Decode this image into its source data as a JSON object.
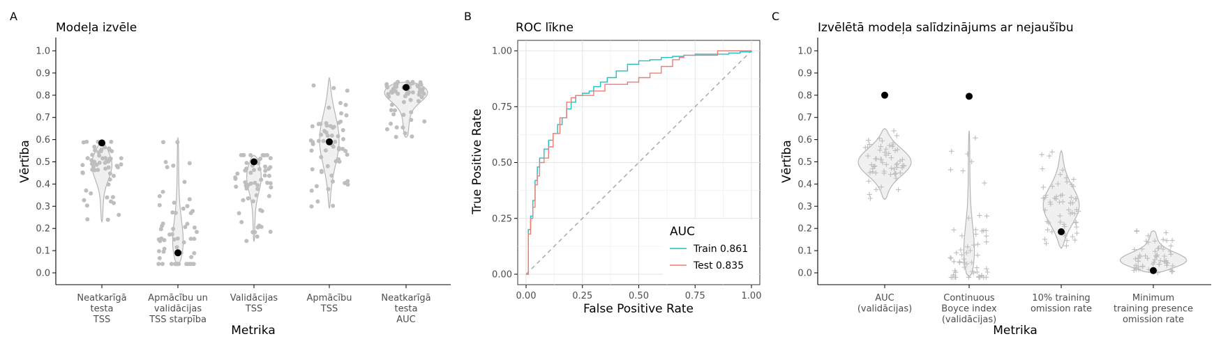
{
  "chart_data": [
    {
      "type": "violin",
      "panel": "A",
      "title": "Modeļa izvēle",
      "xlabel": "Metrika",
      "ylabel": "Vērtība",
      "ylim": [
        0,
        1
      ],
      "yticks": [
        "0.0",
        "0.1",
        "0.2",
        "0.3",
        "0.4",
        "0.5",
        "0.6",
        "0.7",
        "0.8",
        "0.9",
        "1.0"
      ],
      "categories": [
        "Neatkarīgā\ntesta\nTSS",
        "Apmācību un\nvalidācijas\nTSS starpība",
        "Validācijas\nTSS",
        "Apmācību\nTSS",
        "Neatkarīgā\ntesta\nAUC"
      ],
      "selected": [
        0.585,
        0.09,
        0.5,
        0.59,
        0.835
      ],
      "ranges": [
        [
          0.23,
          0.59
        ],
        [
          0.04,
          0.61
        ],
        [
          0.14,
          0.53
        ],
        [
          0.29,
          0.88
        ],
        [
          0.61,
          0.86
        ]
      ],
      "colors": {
        "points": "#bebebe",
        "violin_fill": "#f0f0f0",
        "violin_stroke": "#b5b5b5",
        "selected": "#000000"
      }
    },
    {
      "type": "line",
      "panel": "B",
      "title": "ROC līkne",
      "xlabel": "False Positive Rate",
      "ylabel": "True Positive Rate",
      "xlim": [
        0,
        1
      ],
      "ylim": [
        0,
        1
      ],
      "xticks": [
        "0.00",
        "0.25",
        "0.50",
        "0.75",
        "1.00"
      ],
      "yticks": [
        "0.00",
        "0.25",
        "0.50",
        "0.75",
        "1.00"
      ],
      "grid": true,
      "legend": {
        "title": "AUC",
        "position": "bottom-right"
      },
      "series": [
        {
          "name": "Train 0.861",
          "color": "#1fbfc4",
          "x": [
            0,
            0.01,
            0.02,
            0.03,
            0.04,
            0.05,
            0.06,
            0.08,
            0.1,
            0.12,
            0.14,
            0.16,
            0.18,
            0.2,
            0.22,
            0.25,
            0.28,
            0.3,
            0.33,
            0.36,
            0.4,
            0.45,
            0.5,
            0.55,
            0.6,
            0.65,
            0.7,
            0.75,
            0.8,
            0.85,
            0.9,
            0.95,
            1.0
          ],
          "y": [
            0,
            0.2,
            0.26,
            0.33,
            0.42,
            0.48,
            0.52,
            0.56,
            0.6,
            0.63,
            0.67,
            0.7,
            0.74,
            0.77,
            0.8,
            0.81,
            0.82,
            0.84,
            0.86,
            0.88,
            0.91,
            0.94,
            0.955,
            0.96,
            0.97,
            0.975,
            0.98,
            0.985,
            0.985,
            0.985,
            0.99,
            0.995,
            1.0
          ]
        },
        {
          "name": "Test 0.835",
          "color": "#f07b72",
          "x": [
            0,
            0.01,
            0.02,
            0.03,
            0.04,
            0.05,
            0.06,
            0.08,
            0.1,
            0.12,
            0.15,
            0.18,
            0.2,
            0.22,
            0.25,
            0.3,
            0.35,
            0.38,
            0.4,
            0.45,
            0.5,
            0.5,
            0.55,
            0.6,
            0.65,
            0.68,
            0.7,
            0.8,
            0.85,
            0.9,
            1.0
          ],
          "y": [
            0,
            0.18,
            0.25,
            0.3,
            0.4,
            0.44,
            0.5,
            0.52,
            0.57,
            0.63,
            0.7,
            0.77,
            0.79,
            0.8,
            0.8,
            0.82,
            0.85,
            0.85,
            0.85,
            0.86,
            0.86,
            0.88,
            0.9,
            0.93,
            0.96,
            0.97,
            0.98,
            0.98,
            1.0,
            1.0,
            1.0
          ]
        }
      ]
    },
    {
      "type": "violin",
      "panel": "C",
      "title": "Izvēlētā modeļa salīdzinājums ar nejaušību",
      "xlabel": "Metrika",
      "ylabel": "Vērtība",
      "ylim": [
        0,
        1
      ],
      "yticks": [
        "0.0",
        "0.1",
        "0.2",
        "0.3",
        "0.4",
        "0.5",
        "0.6",
        "0.7",
        "0.8",
        "0.9",
        "1.0"
      ],
      "categories": [
        "AUC\n(validācijas)",
        "Continuous\nBoyce index\n(validācijas)",
        "10% training\nomission rate",
        "Minimum\ntraining presence\nomission rate"
      ],
      "selected": [
        0.8,
        0.795,
        0.185,
        0.01
      ],
      "ranges": [
        [
          0.33,
          0.65
        ],
        [
          -0.02,
          0.64
        ],
        [
          0.11,
          0.55
        ],
        [
          0.0,
          0.19
        ]
      ],
      "colors": {
        "points": "#bebebe",
        "violin_fill": "#f0f0f0",
        "violin_stroke": "#b5b5b5",
        "selected": "#000000"
      }
    }
  ]
}
